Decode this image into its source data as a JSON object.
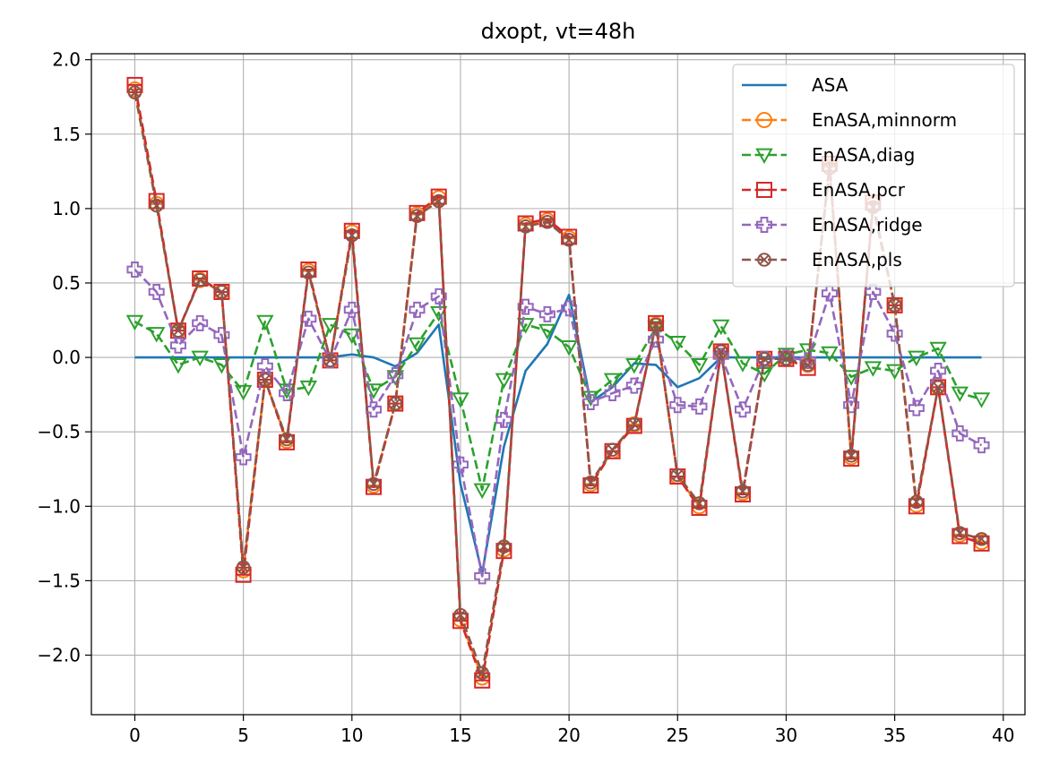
{
  "chart_data": {
    "type": "line",
    "title": "dxopt, vt=48h",
    "xlabel": "",
    "ylabel": "",
    "xlim": [
      -2,
      41
    ],
    "ylim": [
      -2.4,
      2.04
    ],
    "xticks": [
      0,
      5,
      10,
      15,
      20,
      25,
      30,
      35,
      40
    ],
    "xtick_labels": [
      "0",
      "5",
      "10",
      "15",
      "20",
      "25",
      "30",
      "35",
      "40"
    ],
    "yticks": [
      2.0,
      1.5,
      1.0,
      0.5,
      0.0,
      -0.5,
      -1.0,
      -1.5,
      -2.0
    ],
    "ytick_labels": [
      "2.0",
      "1.5",
      "1.0",
      "0.5",
      "0.0",
      "−0.5",
      "−1.0",
      "−1.5",
      "−2.0"
    ],
    "grid": true,
    "legend_position": "top-right",
    "x": [
      0,
      1,
      2,
      3,
      4,
      5,
      6,
      7,
      8,
      9,
      10,
      11,
      12,
      13,
      14,
      15,
      16,
      17,
      18,
      19,
      20,
      21,
      22,
      23,
      24,
      25,
      26,
      27,
      28,
      29,
      30,
      31,
      32,
      33,
      34,
      35,
      36,
      37,
      38,
      39
    ],
    "series": [
      {
        "name": "ASA",
        "color": "#1f77b4",
        "linestyle": "solid",
        "marker": "none",
        "values": [
          0,
          0,
          0,
          0,
          0,
          0,
          0,
          0,
          0,
          0,
          0.02,
          0,
          -0.06,
          0.03,
          0.22,
          -0.85,
          -1.45,
          -0.6,
          -0.09,
          0.09,
          0.42,
          -0.3,
          -0.2,
          -0.04,
          -0.05,
          -0.2,
          -0.14,
          0,
          0,
          0,
          0,
          0,
          0,
          0,
          0,
          0,
          0,
          0,
          0,
          0
        ]
      },
      {
        "name": "EnASA,minnorm",
        "color": "#ff7f0e",
        "linestyle": "dashed",
        "marker": "circle-minus",
        "values": [
          1.8,
          1.03,
          0.18,
          0.52,
          0.44,
          -1.43,
          -0.15,
          -0.56,
          0.58,
          -0.02,
          0.84,
          -0.86,
          -0.31,
          0.96,
          1.07,
          -1.76,
          -2.15,
          -1.29,
          0.89,
          0.92,
          0.8,
          -0.85,
          -0.63,
          -0.45,
          0.22,
          -0.8,
          -1.0,
          0.04,
          -0.91,
          -0.01,
          -0.01,
          -0.05,
          1.28,
          -0.67,
          1.03,
          0.35,
          -0.99,
          -0.2,
          -1.19,
          -1.24
        ]
      },
      {
        "name": "EnASA,diag",
        "color": "#2ca02c",
        "linestyle": "dashed",
        "marker": "triangle-down",
        "values": [
          0.24,
          0.16,
          -0.05,
          0,
          -0.05,
          -0.23,
          0.24,
          -0.22,
          -0.2,
          0.22,
          0.15,
          -0.22,
          -0.13,
          0.09,
          0.3,
          -0.28,
          -0.89,
          -0.15,
          0.22,
          0.18,
          0.07,
          -0.27,
          -0.15,
          -0.05,
          0.2,
          0.1,
          -0.05,
          0.21,
          -0.04,
          -0.11,
          0.02,
          0.05,
          0.03,
          -0.13,
          -0.07,
          -0.09,
          0,
          0.06,
          -0.24,
          -0.28
        ]
      },
      {
        "name": "EnASA,pcr",
        "color": "#d62728",
        "linestyle": "dashed",
        "marker": "square-minus",
        "values": [
          1.83,
          1.05,
          0.18,
          0.53,
          0.44,
          -1.46,
          -0.15,
          -0.57,
          0.59,
          -0.02,
          0.85,
          -0.87,
          -0.31,
          0.97,
          1.08,
          -1.77,
          -2.17,
          -1.3,
          0.9,
          0.93,
          0.81,
          -0.86,
          -0.63,
          -0.46,
          0.23,
          -0.8,
          -1.01,
          0.04,
          -0.92,
          -0.01,
          -0.01,
          -0.07,
          1.3,
          -0.68,
          1.04,
          0.35,
          -1.0,
          -0.2,
          -1.2,
          -1.25
        ]
      },
      {
        "name": "EnASA,ridge",
        "color": "#9467bd",
        "linestyle": "dashed",
        "marker": "plus-filled",
        "values": [
          0.59,
          0.44,
          0.08,
          0.23,
          0.15,
          -0.67,
          -0.06,
          -0.24,
          0.26,
          -0.02,
          0.32,
          -0.35,
          -0.12,
          0.32,
          0.41,
          -0.72,
          -1.47,
          -0.42,
          0.34,
          0.29,
          0.33,
          -0.3,
          -0.24,
          -0.19,
          0.12,
          -0.32,
          -0.33,
          0.01,
          -0.35,
          -0.01,
          0,
          -0.02,
          0.43,
          -0.32,
          0.44,
          0.16,
          -0.34,
          -0.09,
          -0.51,
          -0.59
        ]
      },
      {
        "name": "EnASA,pls",
        "color": "#8c564b",
        "linestyle": "dashed",
        "marker": "x-circle",
        "values": [
          1.78,
          1.02,
          0.18,
          0.52,
          0.44,
          -1.41,
          -0.15,
          -0.55,
          0.57,
          -0.02,
          0.82,
          -0.85,
          -0.31,
          0.95,
          1.05,
          -1.73,
          -2.12,
          -1.27,
          0.88,
          0.91,
          0.79,
          -0.84,
          -0.62,
          -0.45,
          0.22,
          -0.79,
          -0.98,
          0.04,
          -0.9,
          -0.01,
          -0.01,
          -0.05,
          1.27,
          -0.66,
          1.01,
          0.35,
          -0.97,
          -0.2,
          -1.18,
          -1.22
        ]
      }
    ]
  }
}
